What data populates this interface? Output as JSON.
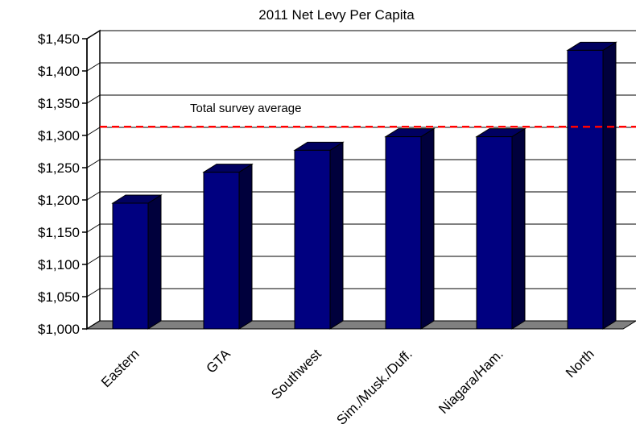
{
  "chart_data": {
    "type": "bar",
    "title": "2011 Net Levy Per Capita",
    "categories": [
      "Eastern",
      "GTA",
      "Southwest",
      "Sim./Musk./Duff.",
      "Niagara/Ham.",
      "North"
    ],
    "values": [
      1195,
      1243,
      1277,
      1298,
      1298,
      1432
    ],
    "ylim": [
      1000,
      1450
    ],
    "yticks": [
      1000,
      1050,
      1100,
      1150,
      1200,
      1250,
      1300,
      1350,
      1400,
      1450
    ],
    "ytick_labels": [
      "$1,000",
      "$1,050",
      "$1,100",
      "$1,150",
      "$1,200",
      "$1,250",
      "$1,300",
      "$1,350",
      "$1,400",
      "$1,450"
    ],
    "grid": true,
    "reference_line": {
      "label": "Total survey average",
      "value": 1301
    },
    "colors": {
      "bar_front": "#000080",
      "bar_side": "#00003c",
      "bar_top": "#000060",
      "reference_line": "#ff0000",
      "floor": "#808080"
    }
  }
}
